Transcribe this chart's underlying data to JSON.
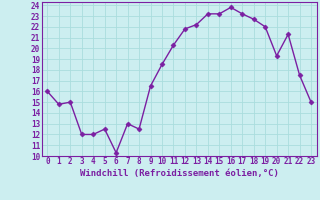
{
  "x": [
    0,
    1,
    2,
    3,
    4,
    5,
    6,
    7,
    8,
    9,
    10,
    11,
    12,
    13,
    14,
    15,
    16,
    17,
    18,
    19,
    20,
    21,
    22,
    23
  ],
  "y": [
    16.0,
    14.8,
    15.0,
    12.0,
    12.0,
    12.5,
    10.3,
    13.0,
    12.5,
    16.5,
    18.5,
    20.3,
    21.8,
    22.2,
    23.2,
    23.2,
    23.8,
    23.2,
    22.7,
    22.0,
    19.3,
    21.3,
    17.5,
    15.0
  ],
  "line_color": "#7b1fa2",
  "marker": "D",
  "markersize": 2.5,
  "linewidth": 1.0,
  "xlabel": "Windchill (Refroidissement éolien,°C)",
  "xlabel_fontsize": 6.5,
  "ylim": [
    10,
    24
  ],
  "xlim": [
    -0.5,
    23.5
  ],
  "yticks": [
    10,
    11,
    12,
    13,
    14,
    15,
    16,
    17,
    18,
    19,
    20,
    21,
    22,
    23,
    24
  ],
  "xticks": [
    0,
    1,
    2,
    3,
    4,
    5,
    6,
    7,
    8,
    9,
    10,
    11,
    12,
    13,
    14,
    15,
    16,
    17,
    18,
    19,
    20,
    21,
    22,
    23
  ],
  "background_color": "#cceef0",
  "grid_color": "#aadddd",
  "tick_color": "#7b1fa2",
  "tick_fontsize": 5.5
}
